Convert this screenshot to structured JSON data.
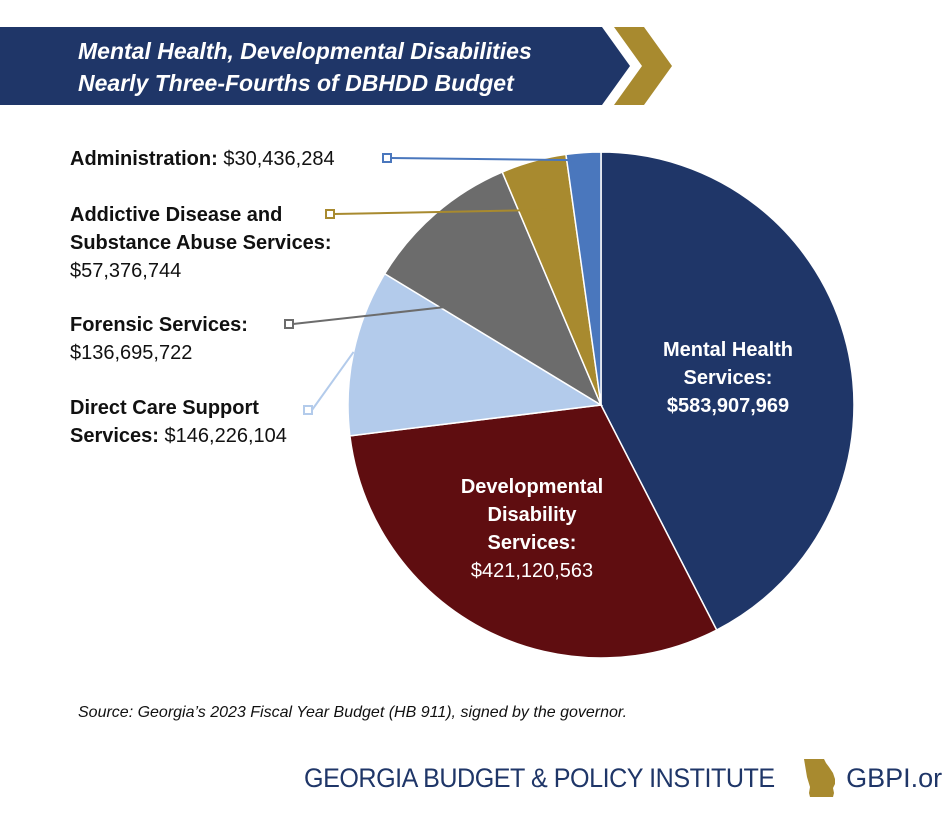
{
  "header": {
    "title_line1": "Mental Health, Developmental Disabilities",
    "title_line2": "Nearly Three-Fourths of DBHDD Budget"
  },
  "chart_data": {
    "type": "pie",
    "slices": [
      {
        "id": "mental-health",
        "name_lines": [
          "Mental Health",
          "Services:"
        ],
        "value": 583907969,
        "value_label": "$583,907,969",
        "color": "#1f3668"
      },
      {
        "id": "developmental-disability",
        "name_lines": [
          "Developmental",
          "Disability",
          "Services:"
        ],
        "value": 421120563,
        "value_label": "$421,120,563",
        "color": "#5f0d10"
      },
      {
        "id": "direct-care",
        "name_lines": [
          "Direct Care Support",
          "Services:"
        ],
        "value": 146226104,
        "value_label": "$146,226,104",
        "color": "#b3cbeb"
      },
      {
        "id": "forensic",
        "name_lines": [
          "Forensic Services:"
        ],
        "value": 136695722,
        "value_label": "$136,695,722",
        "color": "#6c6c6c"
      },
      {
        "id": "addictive-disease",
        "name_lines": [
          "Addictive Disease and",
          "Substance Abuse Services:"
        ],
        "value": 57376744,
        "value_label": "$57,376,744",
        "color": "#a88a2f"
      },
      {
        "id": "administration",
        "name_lines": [
          "Administration:"
        ],
        "value": 30436284,
        "value_label": "$30,436,284",
        "color": "#4a77bd"
      }
    ]
  },
  "source": "Source: Georgia’s 2023 Fiscal Year Budget (HB 911), signed by the governor.",
  "footer": {
    "org_name": "GEORGIA BUDGET & POLICY INSTITUTE",
    "url": "GBPI.org",
    "logo_icon": "georgia-state-icon",
    "logo_color": "#a88a2f"
  }
}
